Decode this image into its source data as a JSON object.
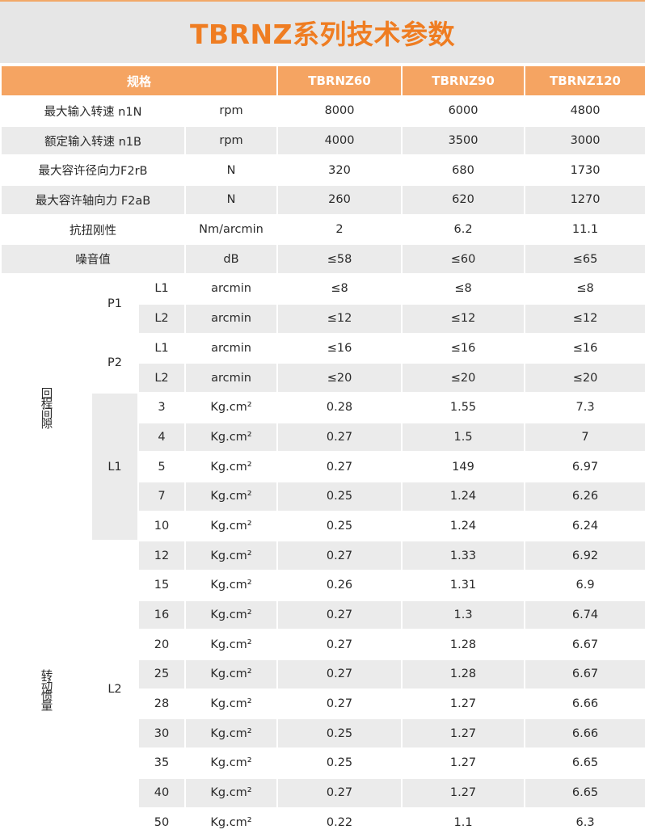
{
  "title": "TBRNZ系列技术参数",
  "header": {
    "spec": "规格",
    "models": [
      "TBRNZ60",
      "TBRNZ90",
      "TBRNZ120"
    ]
  },
  "colors": {
    "accent": "#ef7d22",
    "header_bg": "#f5a462",
    "stripe": "#ebebeb"
  },
  "specs": [
    {
      "label": "最大输入转速 n1N",
      "unit": "rpm",
      "values": [
        "8000",
        "6000",
        "4800"
      ]
    },
    {
      "label": "额定输入转速 n1B",
      "unit": "rpm",
      "values": [
        "4000",
        "3500",
        "3000"
      ]
    },
    {
      "label": "最大容许径向力F2rB",
      "unit": "N",
      "values": [
        "320",
        "680",
        "1730"
      ]
    },
    {
      "label": "最大容许轴向力 F2aB",
      "unit": "N",
      "values": [
        "260",
        "620",
        "1270"
      ]
    },
    {
      "label": "抗扭刚性",
      "unit": "Nm/arcmin",
      "values": [
        "2",
        "6.2",
        "11.1"
      ]
    },
    {
      "label": "噪音值",
      "unit": "dB",
      "values": [
        "≤58",
        "≤60",
        "≤65"
      ]
    }
  ],
  "backlash": {
    "label": "回程间隙",
    "groups": [
      {
        "precision": "P1",
        "rows": [
          {
            "stage": "L1",
            "unit": "arcmin",
            "values": [
              "≤8",
              "≤8",
              "≤8"
            ]
          },
          {
            "stage": "L2",
            "unit": "arcmin",
            "values": [
              "≤12",
              "≤12",
              "≤12"
            ]
          }
        ]
      },
      {
        "precision": "P2",
        "rows": [
          {
            "stage": "L1",
            "unit": "arcmin",
            "values": [
              "≤16",
              "≤16",
              "≤16"
            ]
          },
          {
            "stage": "L2",
            "unit": "arcmin",
            "values": [
              "≤20",
              "≤20",
              "≤20"
            ]
          }
        ]
      }
    ]
  },
  "inertia": {
    "label": "转动惯量",
    "groups": [
      {
        "stage": "L1",
        "rows": [
          {
            "ratio": "3",
            "unit": "Kg.cm²",
            "values": [
              "0.28",
              "1.55",
              "7.3"
            ]
          },
          {
            "ratio": "4",
            "unit": "Kg.cm²",
            "values": [
              "0.27",
              "1.5",
              "7"
            ]
          },
          {
            "ratio": "5",
            "unit": "Kg.cm²",
            "values": [
              "0.27",
              "149",
              "6.97"
            ]
          },
          {
            "ratio": "7",
            "unit": "Kg.cm²",
            "values": [
              "0.25",
              "1.24",
              "6.26"
            ]
          },
          {
            "ratio": "10",
            "unit": "Kg.cm²",
            "values": [
              "0.25",
              "1.24",
              "6.24"
            ]
          }
        ]
      },
      {
        "stage": "L2",
        "rows": [
          {
            "ratio": "12",
            "unit": "Kg.cm²",
            "values": [
              "0.27",
              "1.33",
              "6.92"
            ]
          },
          {
            "ratio": "15",
            "unit": "Kg.cm²",
            "values": [
              "0.26",
              "1.31",
              "6.9"
            ]
          },
          {
            "ratio": "16",
            "unit": "Kg.cm²",
            "values": [
              "0.27",
              "1.3",
              "6.74"
            ]
          },
          {
            "ratio": "20",
            "unit": "Kg.cm²",
            "values": [
              "0.27",
              "1.28",
              "6.67"
            ]
          },
          {
            "ratio": "25",
            "unit": "Kg.cm²",
            "values": [
              "0.27",
              "1.28",
              "6.67"
            ]
          },
          {
            "ratio": "28",
            "unit": "Kg.cm²",
            "values": [
              "0.27",
              "1.27",
              "6.66"
            ]
          },
          {
            "ratio": "30",
            "unit": "Kg.cm²",
            "values": [
              "0.25",
              "1.27",
              "6.66"
            ]
          },
          {
            "ratio": "35",
            "unit": "Kg.cm²",
            "values": [
              "0.25",
              "1.27",
              "6.65"
            ]
          },
          {
            "ratio": "40",
            "unit": "Kg.cm²",
            "values": [
              "0.27",
              "1.27",
              "6.65"
            ]
          },
          {
            "ratio": "50",
            "unit": "Kg.cm²",
            "values": [
              "0.22",
              "1.1",
              "6.3"
            ]
          }
        ]
      }
    ]
  }
}
